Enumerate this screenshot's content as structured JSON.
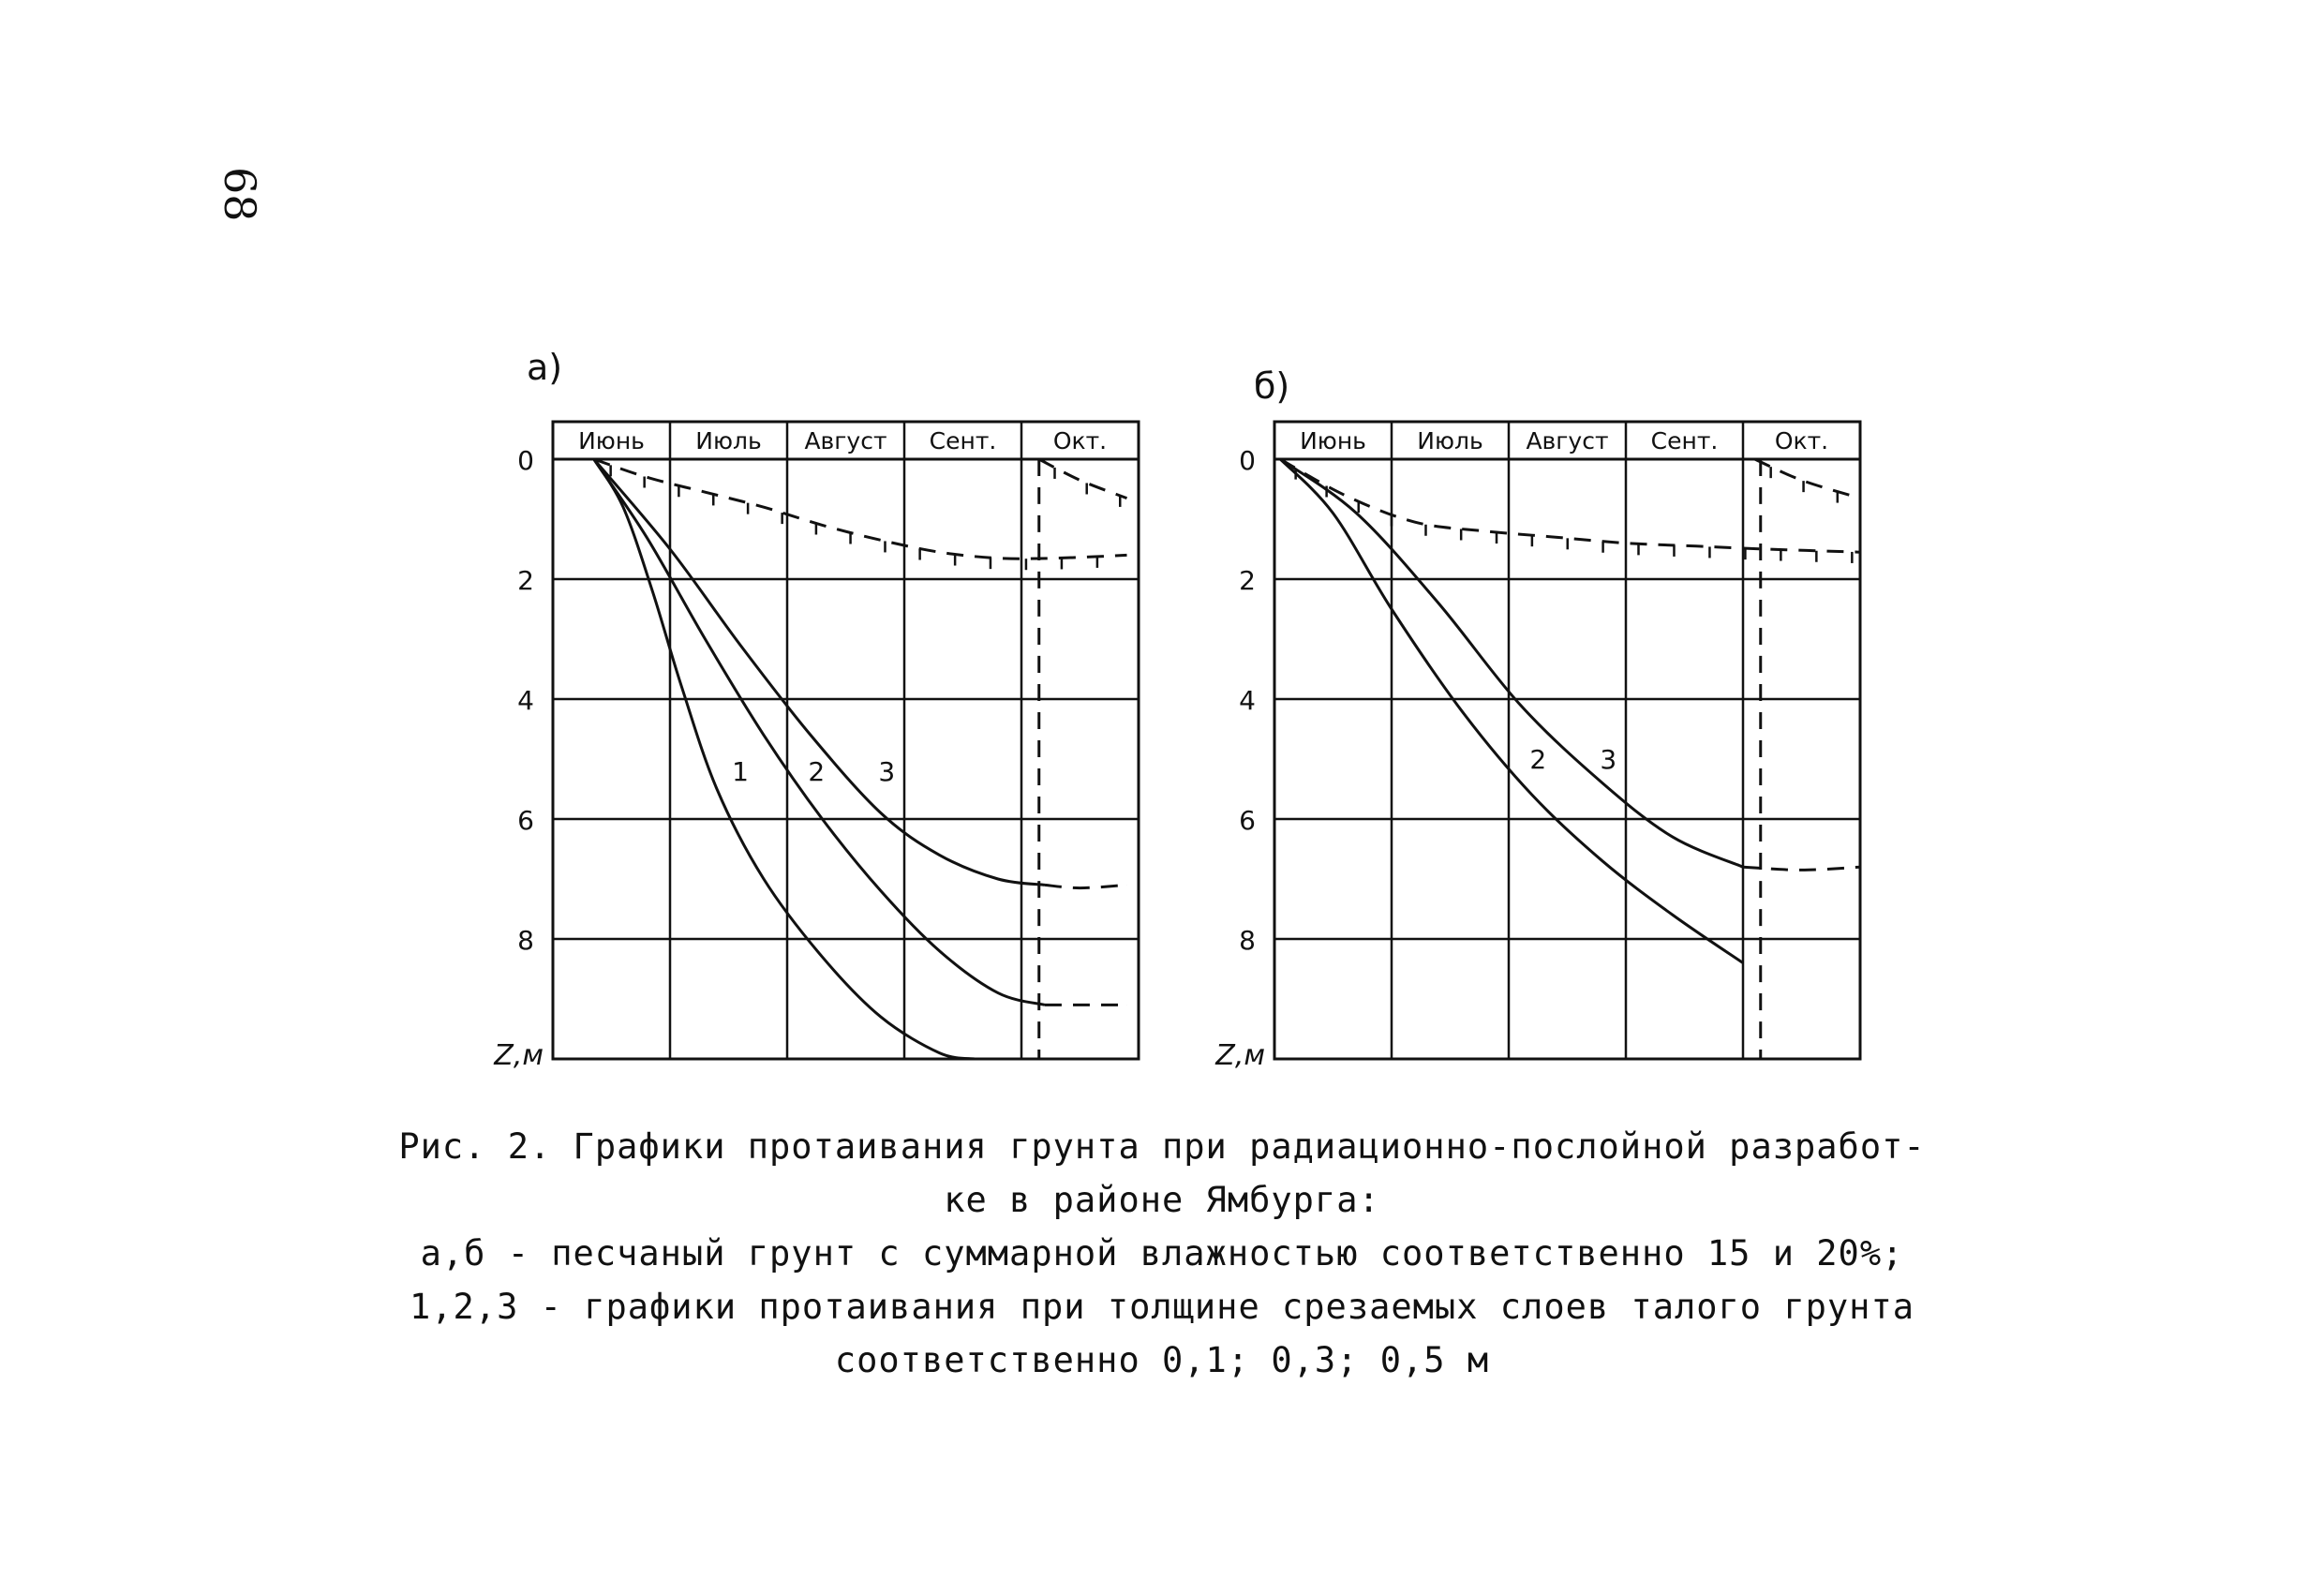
{
  "page_number": "68",
  "caption": {
    "line1": "Рис. 2. Графики протаивания грунта при радиационно-послойной разработ-",
    "line2": "ке в районе Ямбурга:",
    "line3": "а,б - песчаный грунт с суммарной влажностью соответственно 15 и 20%;",
    "line4": "1,2,3 - графики протаивания при толщине срезаемых слоев талого грунта",
    "line5": "соответственно 0,1; 0,3; 0,5 м"
  },
  "chart_data": [
    {
      "type": "line",
      "panel_label": "а)",
      "months": [
        "Июнь",
        "Июль",
        "Август",
        "Сент.",
        "Окт."
      ],
      "ylabel": "Z,м",
      "yticks": [
        0,
        2,
        4,
        6,
        8
      ],
      "ylim": [
        0,
        10
      ],
      "xlim": [
        0,
        5
      ],
      "grid": true,
      "series": [
        {
          "name": "1",
          "style": "solid",
          "x": [
            0.35,
            0.6,
            0.85,
            1.1,
            1.4,
            1.8,
            2.3,
            2.8,
            3.3,
            3.6
          ],
          "y": [
            0,
            0.8,
            2.2,
            3.8,
            5.5,
            7.0,
            8.3,
            9.3,
            9.9,
            10.0
          ]
        },
        {
          "name": "2",
          "style": "solid",
          "x": [
            0.35,
            0.8,
            1.3,
            1.8,
            2.3,
            2.8,
            3.3,
            3.8,
            4.2
          ],
          "y": [
            0,
            1.3,
            3.0,
            4.6,
            6.0,
            7.2,
            8.2,
            8.9,
            9.1
          ]
        },
        {
          "name": "3",
          "style": "solid",
          "x": [
            0.35,
            1.0,
            1.6,
            2.2,
            2.8,
            3.3,
            3.8,
            4.2
          ],
          "y": [
            0,
            1.5,
            3.1,
            4.6,
            5.9,
            6.6,
            7.0,
            7.1
          ]
        },
        {
          "name": "2-oct",
          "style": "dashed",
          "x": [
            4.2,
            4.5,
            4.9
          ],
          "y": [
            9.1,
            9.1,
            9.1
          ]
        },
        {
          "name": "3-oct",
          "style": "dashed",
          "x": [
            4.2,
            4.5,
            4.9
          ],
          "y": [
            7.1,
            7.15,
            7.1
          ]
        },
        {
          "name": "frost",
          "style": "dashed-ticks",
          "x": [
            0.35,
            0.8,
            1.3,
            1.8,
            2.3,
            2.8,
            3.3,
            3.8,
            4.3,
            4.9
          ],
          "y": [
            0,
            0.3,
            0.55,
            0.8,
            1.1,
            1.35,
            1.55,
            1.65,
            1.65,
            1.6
          ]
        },
        {
          "name": "oct-front",
          "style": "dashed-ticks",
          "x": [
            4.15,
            4.5,
            4.9
          ],
          "y": [
            0,
            0.35,
            0.65
          ]
        },
        {
          "name": "oct-vertical",
          "style": "dashed",
          "x": [
            4.15,
            4.15
          ],
          "y": [
            0,
            10
          ]
        }
      ],
      "curve_labels": [
        {
          "text": "1",
          "x": 1.6,
          "y": 5.2
        },
        {
          "text": "2",
          "x": 2.25,
          "y": 5.2
        },
        {
          "text": "3",
          "x": 2.85,
          "y": 5.2
        }
      ]
    },
    {
      "type": "line",
      "panel_label": "б)",
      "months": [
        "Июнь",
        "Июль",
        "Август",
        "Сент.",
        "Окт."
      ],
      "ylabel": "Z,м",
      "yticks": [
        0,
        2,
        4,
        6,
        8
      ],
      "ylim": [
        0,
        10
      ],
      "xlim": [
        0,
        5
      ],
      "grid": true,
      "series": [
        {
          "name": "2",
          "style": "solid",
          "x": [
            0.05,
            0.5,
            1.0,
            1.6,
            2.2,
            2.8,
            3.4,
            4.0
          ],
          "y": [
            0,
            0.9,
            2.5,
            4.2,
            5.6,
            6.7,
            7.6,
            8.4
          ]
        },
        {
          "name": "3",
          "style": "solid",
          "x": [
            0.05,
            0.7,
            1.4,
            2.1,
            2.8,
            3.4,
            4.0
          ],
          "y": [
            0,
            0.9,
            2.4,
            4.1,
            5.4,
            6.3,
            6.8
          ]
        },
        {
          "name": "3-oct",
          "style": "dashed",
          "x": [
            4.0,
            4.5,
            5.0
          ],
          "y": [
            6.8,
            6.85,
            6.8
          ]
        },
        {
          "name": "frost",
          "style": "dashed-ticks",
          "x": [
            0.05,
            0.6,
            1.2,
            1.8,
            2.4,
            3.0,
            3.6,
            4.2,
            5.0
          ],
          "y": [
            0,
            0.6,
            1.05,
            1.2,
            1.3,
            1.4,
            1.45,
            1.5,
            1.55
          ]
        },
        {
          "name": "oct-front",
          "style": "dashed-ticks",
          "x": [
            4.1,
            4.5,
            5.0
          ],
          "y": [
            0,
            0.35,
            0.65
          ]
        },
        {
          "name": "oct-vertical",
          "style": "dashed",
          "x": [
            4.15,
            4.15
          ],
          "y": [
            0,
            10
          ]
        }
      ],
      "curve_labels": [
        {
          "text": "2",
          "x": 2.25,
          "y": 5.0
        },
        {
          "text": "3",
          "x": 2.85,
          "y": 5.0
        }
      ]
    }
  ]
}
